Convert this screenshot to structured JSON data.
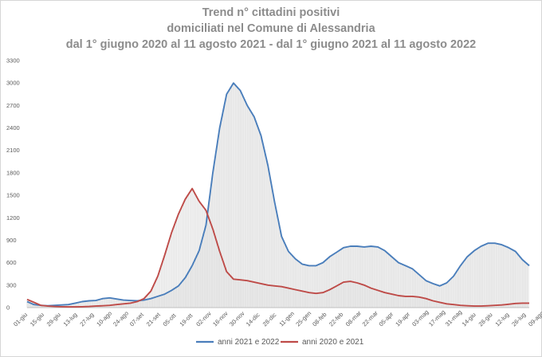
{
  "title_lines": [
    "Trend n° cittadini positivi",
    "domiciliati nel Comune di Alessandria",
    "dal 1° giugno 2020 al 11 agosto 2021 - dal 1° giugno 2021 al 11 agosto 2022"
  ],
  "chart_data": {
    "type": "area",
    "ylim": [
      0,
      3300
    ],
    "yticks": [
      0,
      300,
      600,
      900,
      1200,
      1500,
      1800,
      2100,
      2400,
      2700,
      3000,
      3300
    ],
    "grid": false,
    "legend_position": "bottom",
    "x_labels": [
      "01-giu",
      "15-giu",
      "29-giu",
      "13-lug",
      "27-lug",
      "10-ago",
      "24-ago",
      "07-set",
      "21-set",
      "05-ott",
      "19-ott",
      "02-nov",
      "16-nov",
      "30-nov",
      "14-dic",
      "28-dic",
      "11-gen",
      "25-gen",
      "08-feb",
      "22-feb",
      "08-mar",
      "22-mar",
      "05-apr",
      "19-apr",
      "03-mag",
      "17-mag",
      "31-mag",
      "14-giu",
      "28-giu",
      "12-lug",
      "26-lug",
      "09-ago"
    ],
    "series": [
      {
        "name": "anni 2021 e 2022",
        "color": "#4a7ebb",
        "points": [
          [
            0,
            80
          ],
          [
            1,
            40
          ],
          [
            2,
            30
          ],
          [
            3,
            25
          ],
          [
            4,
            30
          ],
          [
            5,
            35
          ],
          [
            6,
            40
          ],
          [
            7,
            60
          ],
          [
            8,
            80
          ],
          [
            9,
            90
          ],
          [
            10,
            95
          ],
          [
            11,
            120
          ],
          [
            12,
            130
          ],
          [
            13,
            115
          ],
          [
            14,
            100
          ],
          [
            15,
            95
          ],
          [
            16,
            90
          ],
          [
            17,
            100
          ],
          [
            18,
            120
          ],
          [
            19,
            150
          ],
          [
            20,
            180
          ],
          [
            21,
            230
          ],
          [
            22,
            290
          ],
          [
            23,
            400
          ],
          [
            24,
            560
          ],
          [
            25,
            760
          ],
          [
            26,
            1100
          ],
          [
            27,
            1800
          ],
          [
            28,
            2400
          ],
          [
            29,
            2850
          ],
          [
            30,
            3000
          ],
          [
            31,
            2900
          ],
          [
            32,
            2700
          ],
          [
            33,
            2550
          ],
          [
            34,
            2300
          ],
          [
            35,
            1900
          ],
          [
            36,
            1400
          ],
          [
            37,
            950
          ],
          [
            38,
            750
          ],
          [
            39,
            650
          ],
          [
            40,
            580
          ],
          [
            41,
            560
          ],
          [
            42,
            560
          ],
          [
            43,
            600
          ],
          [
            44,
            680
          ],
          [
            45,
            740
          ],
          [
            46,
            800
          ],
          [
            47,
            820
          ],
          [
            48,
            820
          ],
          [
            49,
            810
          ],
          [
            50,
            820
          ],
          [
            51,
            810
          ],
          [
            52,
            760
          ],
          [
            53,
            680
          ],
          [
            54,
            600
          ],
          [
            55,
            560
          ],
          [
            56,
            520
          ],
          [
            57,
            440
          ],
          [
            58,
            360
          ],
          [
            59,
            320
          ],
          [
            60,
            290
          ],
          [
            61,
            330
          ],
          [
            62,
            420
          ],
          [
            63,
            560
          ],
          [
            64,
            680
          ],
          [
            65,
            760
          ],
          [
            66,
            820
          ],
          [
            67,
            860
          ],
          [
            68,
            860
          ],
          [
            69,
            840
          ],
          [
            70,
            800
          ],
          [
            71,
            750
          ],
          [
            72,
            640
          ],
          [
            73,
            560
          ]
        ]
      },
      {
        "name": "anni 2020 e 2021",
        "color": "#be4b48",
        "points": [
          [
            0,
            110
          ],
          [
            1,
            70
          ],
          [
            2,
            30
          ],
          [
            3,
            20
          ],
          [
            4,
            15
          ],
          [
            5,
            12
          ],
          [
            6,
            10
          ],
          [
            7,
            10
          ],
          [
            8,
            12
          ],
          [
            9,
            15
          ],
          [
            10,
            20
          ],
          [
            11,
            25
          ],
          [
            12,
            30
          ],
          [
            13,
            40
          ],
          [
            14,
            50
          ],
          [
            15,
            60
          ],
          [
            16,
            80
          ],
          [
            17,
            120
          ],
          [
            18,
            220
          ],
          [
            19,
            420
          ],
          [
            20,
            700
          ],
          [
            21,
            1000
          ],
          [
            22,
            1250
          ],
          [
            23,
            1450
          ],
          [
            24,
            1590
          ],
          [
            25,
            1420
          ],
          [
            26,
            1300
          ],
          [
            27,
            1050
          ],
          [
            28,
            750
          ],
          [
            29,
            480
          ],
          [
            30,
            380
          ],
          [
            31,
            370
          ],
          [
            32,
            360
          ],
          [
            33,
            340
          ],
          [
            34,
            320
          ],
          [
            35,
            300
          ],
          [
            36,
            290
          ],
          [
            37,
            280
          ],
          [
            38,
            260
          ],
          [
            39,
            240
          ],
          [
            40,
            220
          ],
          [
            41,
            200
          ],
          [
            42,
            190
          ],
          [
            43,
            200
          ],
          [
            44,
            240
          ],
          [
            45,
            290
          ],
          [
            46,
            340
          ],
          [
            47,
            350
          ],
          [
            48,
            330
          ],
          [
            49,
            300
          ],
          [
            50,
            260
          ],
          [
            51,
            230
          ],
          [
            52,
            200
          ],
          [
            53,
            180
          ],
          [
            54,
            160
          ],
          [
            55,
            150
          ],
          [
            56,
            150
          ],
          [
            57,
            140
          ],
          [
            58,
            120
          ],
          [
            59,
            90
          ],
          [
            60,
            70
          ],
          [
            61,
            50
          ],
          [
            62,
            40
          ],
          [
            63,
            30
          ],
          [
            64,
            25
          ],
          [
            65,
            20
          ],
          [
            66,
            20
          ],
          [
            67,
            25
          ],
          [
            68,
            30
          ],
          [
            69,
            35
          ],
          [
            70,
            45
          ],
          [
            71,
            55
          ],
          [
            72,
            60
          ],
          [
            73,
            60
          ]
        ]
      }
    ]
  }
}
